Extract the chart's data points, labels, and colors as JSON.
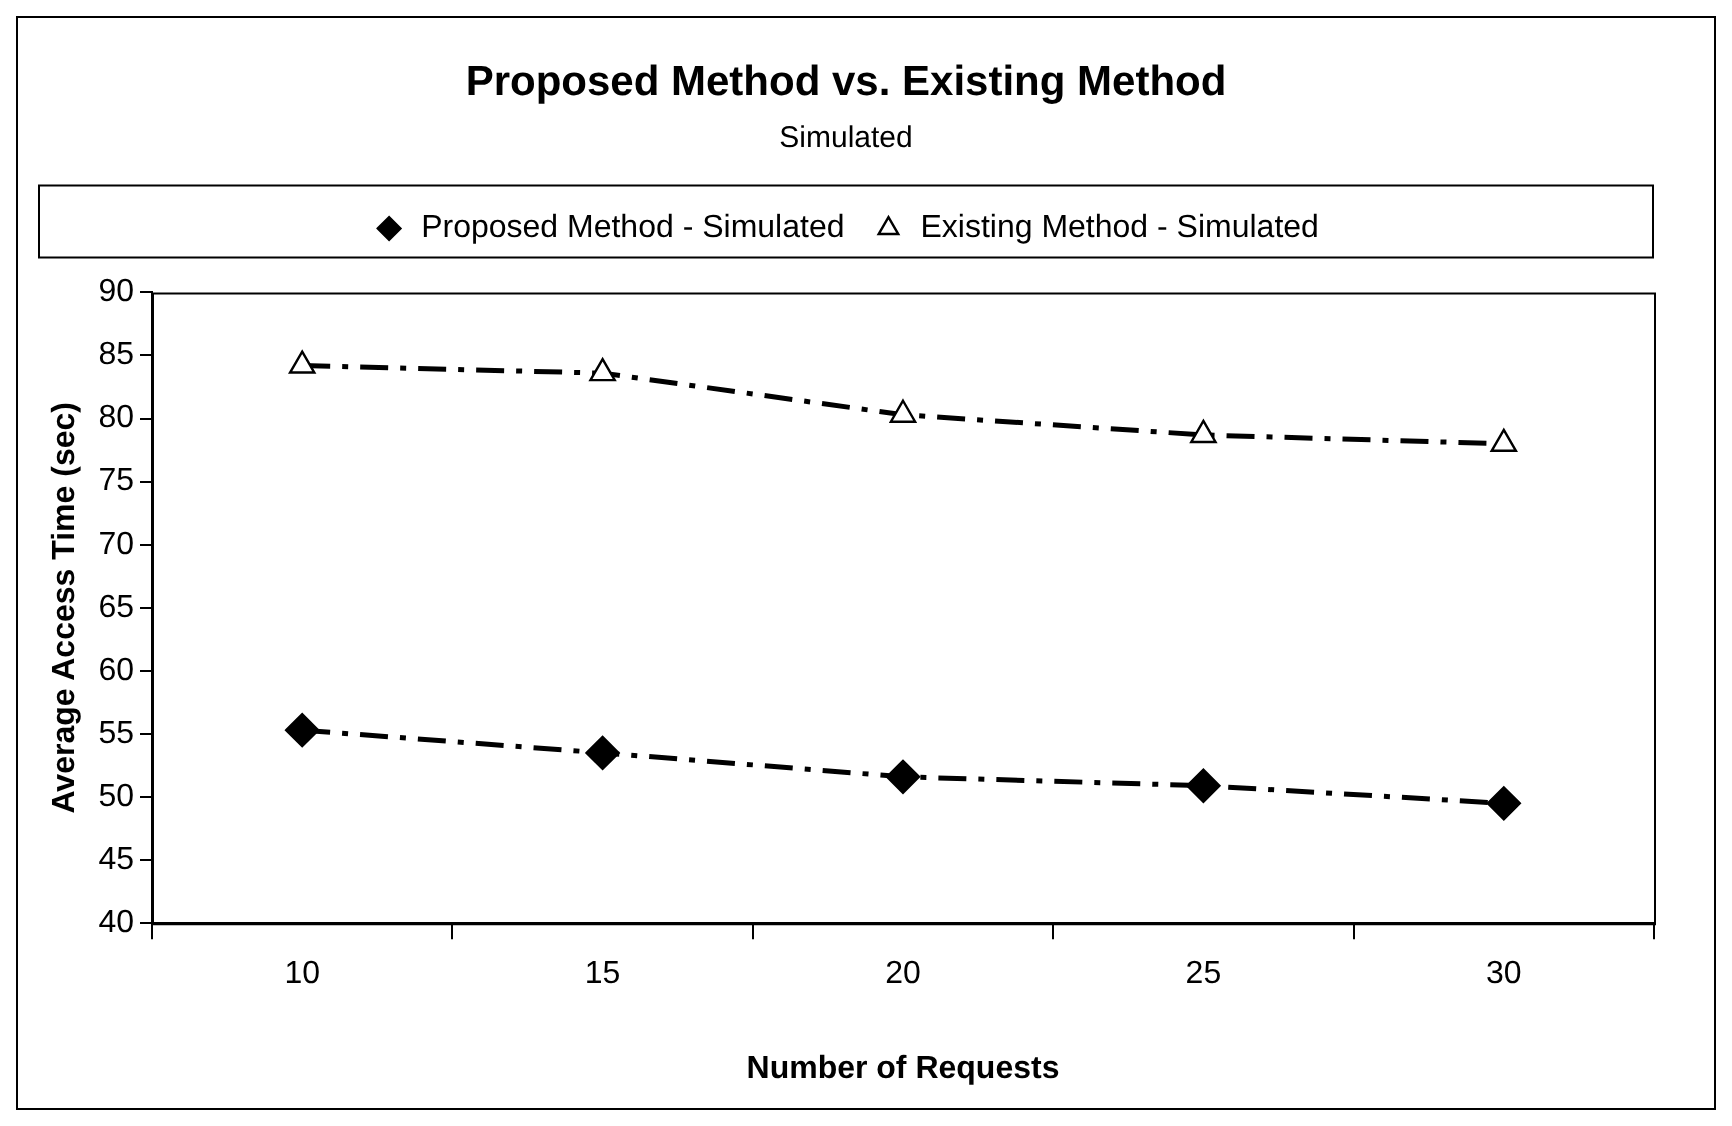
{
  "chart_data": {
    "type": "line",
    "title": "Proposed Method vs. Existing Method",
    "subtitle": "Simulated",
    "xlabel": "Number of Requests",
    "ylabel": "Average Access Time (sec)",
    "categories": [
      "10",
      "15",
      "20",
      "25",
      "30"
    ],
    "series": [
      {
        "name": "Proposed Method - Simulated",
        "color": "#000000",
        "marker": "diamond",
        "values": [
          55.3,
          53.5,
          51.6,
          50.9,
          49.5
        ]
      },
      {
        "name": "Existing Method - Simulated",
        "color": "#000000",
        "marker": "triangle",
        "values": [
          84.2,
          83.6,
          80.3,
          78.7,
          78.0
        ]
      }
    ],
    "ylim": [
      40,
      90
    ],
    "yticks": [
      40,
      45,
      50,
      55,
      60,
      65,
      70,
      75,
      80,
      85,
      90
    ],
    "grid": false,
    "legend": "top",
    "line_style": "dashed"
  }
}
